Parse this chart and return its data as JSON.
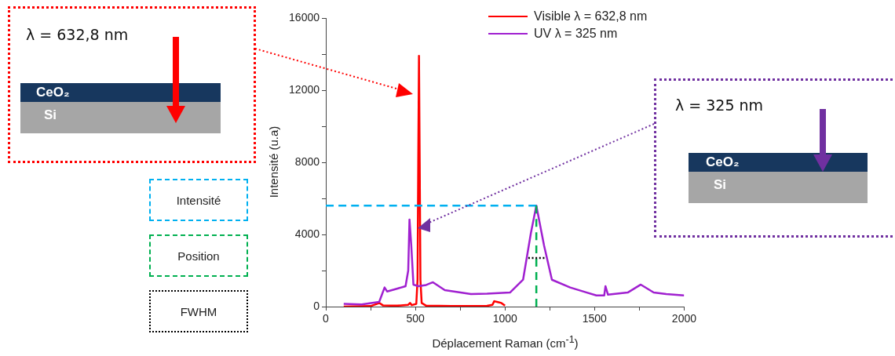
{
  "chart_data": {
    "type": "line",
    "xlabel": "Déplacement Raman (cm$^{-1}$)",
    "ylabel": "Intensité (u.a)",
    "xlim": [
      0,
      2000
    ],
    "ylim": [
      0,
      16000
    ],
    "xticks": [
      0,
      {
        "value": 250,
        "label": null
      },
      500,
      {
        "value": 750,
        "label": null
      },
      1000,
      {
        "value": 1250,
        "label": null
      },
      1500,
      {
        "value": 1750,
        "label": null
      },
      2000
    ],
    "yticks": [
      0,
      {
        "value": 2000,
        "label": null
      },
      4000,
      {
        "value": 6000,
        "label": null
      },
      8000,
      {
        "value": 10000,
        "label": null
      },
      12000,
      {
        "value": 14000,
        "label": null
      },
      16000
    ],
    "grid": false,
    "legend": "top right",
    "annotations": [
      "λ = 632,8 nm",
      "CeO₂",
      "Si",
      "λ = 325 nm",
      "CeO₂",
      "Si",
      "Intensité",
      "Position",
      "FWHM"
    ],
    "series": [
      {
        "name": "Visible λ = 632,8 nm",
        "color": "#ff0000",
        "line_style": "solid",
        "x": [
          100,
          250,
          300,
          320,
          400,
          460,
          470,
          480,
          505,
          512,
          516,
          520,
          524,
          528,
          535,
          560,
          700,
          900,
          930,
          940,
          960,
          980,
          1000
        ],
        "values": [
          0,
          30,
          200,
          60,
          50,
          100,
          200,
          80,
          150,
          1500,
          8000,
          13900,
          8000,
          1500,
          200,
          50,
          30,
          40,
          100,
          300,
          250,
          200,
          50
        ]
      },
      {
        "name": "UV λ = 325 nm",
        "color": "#a020d0",
        "line_style": "solid",
        "x": [
          100,
          200,
          298,
          328,
          342,
          400,
          445,
          460,
          467,
          477,
          489,
          517,
          560,
          598,
          664,
          810,
          900,
          1028,
          1101,
          1145,
          1175,
          1218,
          1262,
          1364,
          1450,
          1510,
          1554,
          1561,
          1575,
          1685,
          1758,
          1830,
          1900,
          2000
        ],
        "values": [
          150,
          120,
          260,
          1060,
          840,
          1000,
          1130,
          2000,
          4830,
          3390,
          1220,
          1130,
          1200,
          1350,
          910,
          700,
          720,
          780,
          1490,
          4100,
          5600,
          3390,
          1490,
          1060,
          800,
          620,
          620,
          1130,
          660,
          780,
          1220,
          780,
          700,
          620
        ]
      },
      {
        "color": "#00b0f0",
        "line_style": "dashed",
        "x": [
          0,
          1175
        ],
        "values": [
          5600,
          5600
        ]
      },
      {
        "color": "#00b050",
        "line_style": "dashed",
        "x": [
          1175,
          1175
        ],
        "values": [
          5600,
          0
        ]
      },
      {
        "color": "#000000",
        "line_style": "dotted",
        "x": [
          1130,
          1220
        ],
        "values": [
          2700,
          2700
        ]
      }
    ]
  }
}
